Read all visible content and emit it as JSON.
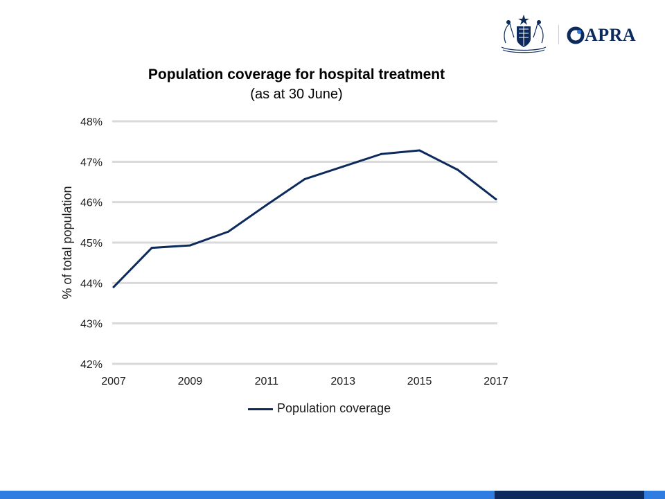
{
  "branding": {
    "crest_icon": "commonwealth-coat-of-arms",
    "logo_text": "APRA",
    "brand_color": "#0d2a5c"
  },
  "chart_data": {
    "type": "line",
    "title": "Population coverage for hospital treatment",
    "subtitle": "(as at 30 June)",
    "xlabel": "",
    "ylabel": "% of total population",
    "x": [
      2007,
      2008,
      2009,
      2010,
      2011,
      2012,
      2013,
      2014,
      2015,
      2016,
      2017
    ],
    "x_ticks": [
      "2007",
      "2009",
      "2011",
      "2013",
      "2015",
      "2017"
    ],
    "y_ticks": [
      "42%",
      "43%",
      "44%",
      "45%",
      "46%",
      "47%",
      "48%"
    ],
    "ylim": [
      42,
      48
    ],
    "grid": true,
    "legend_position": "bottom",
    "series": [
      {
        "name": "Population coverage",
        "color": "#0d2a5c",
        "values": [
          43.9,
          44.87,
          44.93,
          45.27,
          45.93,
          46.57,
          46.88,
          47.19,
          47.28,
          46.8,
          46.07
        ]
      }
    ]
  },
  "footer": {
    "colors": [
      "#2f7de1",
      "#0d2a5c"
    ]
  }
}
